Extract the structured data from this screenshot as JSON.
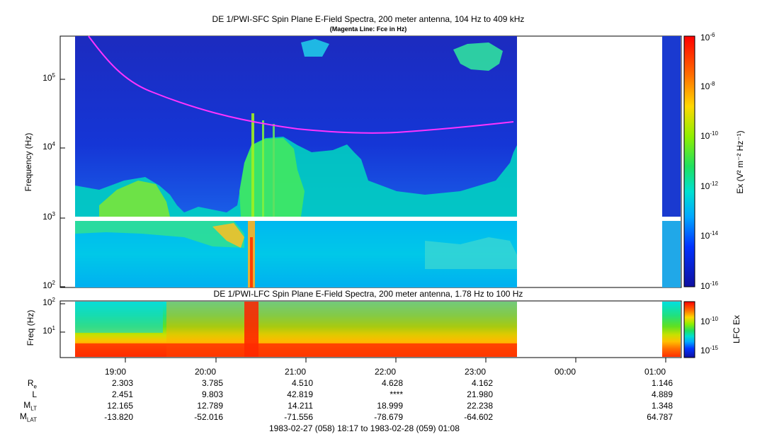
{
  "sfc": {
    "title": "DE 1/PWI-SFC  Spin Plane E-Field Spectra, 200 meter antenna, 104 Hz to 409 kHz",
    "subtitle": "(Magenta Line: Fce in Hz)",
    "ylabel": "Frequency (Hz)",
    "yticks": [
      "10",
      "10",
      "10",
      "10"
    ],
    "yticks_exp": [
      "5",
      "4",
      "3",
      "2"
    ],
    "cbar_label": "Ex (V² m⁻² Hz⁻¹)",
    "cbar_ticks": [
      "10",
      "10",
      "10",
      "10",
      "10",
      "10"
    ],
    "cbar_exp": [
      "-6",
      "-8",
      "-10",
      "-12",
      "-14",
      "-16"
    ]
  },
  "lfc": {
    "title": "DE 1/PWI-LFC  Spin Plane E-Field Spectra, 200 meter antenna, 1.78 Hz to 100 Hz",
    "ylabel": "Freq (Hz)",
    "yticks": [
      "10",
      "10"
    ],
    "yticks_exp": [
      "2",
      "1"
    ],
    "cbar_label": "LFC Ex",
    "cbar_ticks": [
      "10",
      "10"
    ],
    "cbar_exp": [
      "-10",
      "-15"
    ]
  },
  "xaxis": {
    "ticks": [
      "19:00",
      "20:00",
      "21:00",
      "22:00",
      "23:00",
      "00:00",
      "01:00"
    ]
  },
  "ephemeris": {
    "rows": [
      {
        "label": "R",
        "sub": "e",
        "values": [
          "2.303",
          "3.785",
          "4.510",
          "4.628",
          "4.162",
          "",
          "1.146"
        ]
      },
      {
        "label": "L",
        "sub": "",
        "values": [
          "2.451",
          "9.803",
          "42.819",
          "****",
          "21.980",
          "",
          "4.889"
        ]
      },
      {
        "label": "M",
        "sub": "LT",
        "values": [
          "12.165",
          "12.789",
          "14.211",
          "18.999",
          "22.238",
          "",
          "1.348"
        ]
      },
      {
        "label": "M",
        "sub": "LAT",
        "values": [
          "-13.820",
          "-52.016",
          "-71.556",
          "-78.679",
          "-64.602",
          "",
          "64.787"
        ]
      }
    ]
  },
  "time_range": "1983-02-27 (058) 18:17 to 1983-02-28 (059) 01:08",
  "colors": {
    "fce_line": "#ff33ff",
    "background_low": "#1a1aa8",
    "gap": "#ffffff"
  },
  "chart_data": [
    {
      "type": "heatmap",
      "title": "DE 1/PWI-SFC  Spin Plane E-Field Spectra, 200 meter antenna, 104 Hz to 409 kHz",
      "subtitle": "(Magenta Line: Fce in Hz)",
      "xlabel": "",
      "ylabel": "Frequency (Hz)",
      "x_range": [
        "1983-02-27 18:17",
        "1983-02-28 01:08"
      ],
      "ylim": [
        100,
        409000
      ],
      "yscale": "log",
      "colorbar": {
        "label": "Ex (V^2 m^-2 Hz^-1)",
        "range": [
          1e-16,
          1e-06
        ],
        "scale": "log"
      },
      "data_gap": [
        "23:20",
        "00:58"
      ],
      "series": [
        {
          "name": "Fce",
          "x": [
            "18:17",
            "18:30",
            "19:00",
            "19:30",
            "20:00",
            "20:30",
            "21:00",
            "21:30",
            "22:00",
            "22:30",
            "23:00",
            "23:20"
          ],
          "y": [
            409000,
            200000,
            90000,
            55000,
            38000,
            28000,
            21000,
            17500,
            16500,
            17500,
            20000,
            24000
          ]
        }
      ]
    },
    {
      "type": "heatmap",
      "title": "DE 1/PWI-LFC  Spin Plane E-Field Spectra, 200 meter antenna, 1.78 Hz to 100 Hz",
      "ylabel": "Freq (Hz)",
      "ylim": [
        1.78,
        100
      ],
      "yscale": "log",
      "colorbar": {
        "label": "LFC Ex",
        "range": [
          1e-16,
          1e-08
        ],
        "scale": "log"
      },
      "data_gap": [
        "23:20",
        "00:58"
      ]
    }
  ]
}
